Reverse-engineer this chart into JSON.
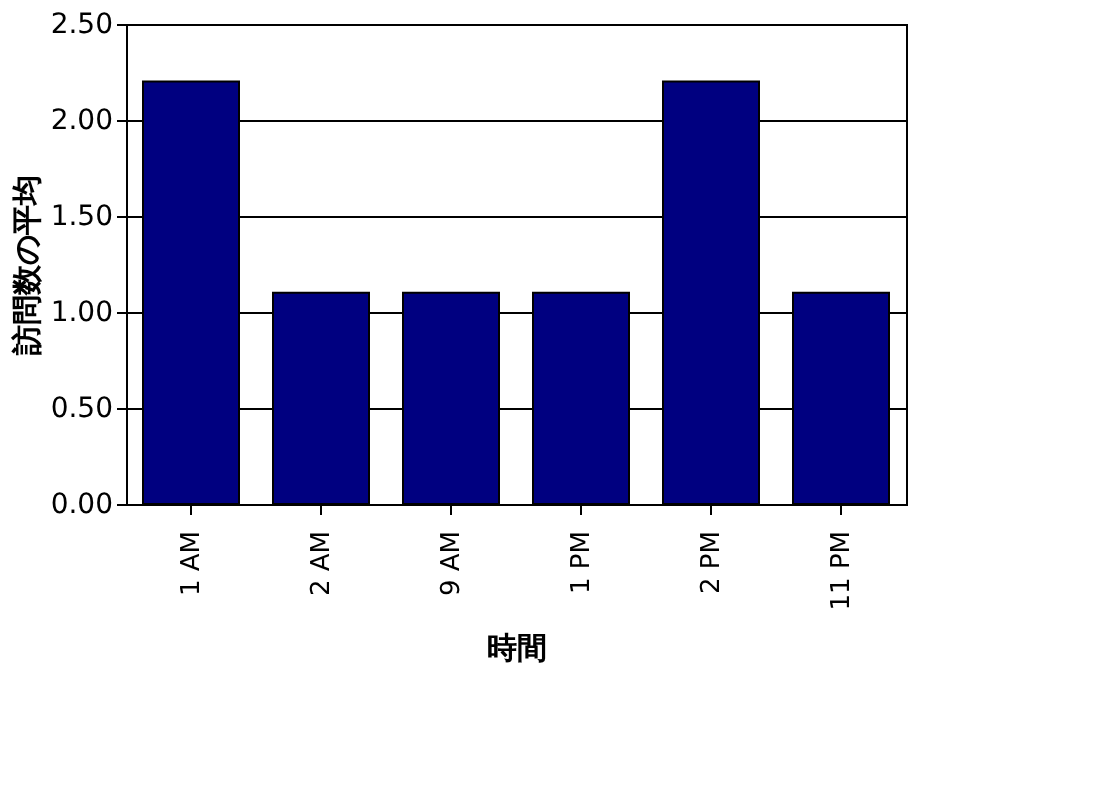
{
  "chart_data": {
    "type": "bar",
    "categories": [
      "1 AM",
      "2 AM",
      "9 AM",
      "1 PM",
      "2 PM",
      "11 PM"
    ],
    "values": [
      2.2,
      1.1,
      1.1,
      1.1,
      2.2,
      1.1
    ],
    "color": "#000080",
    "xlabel": "時間",
    "ylabel": "訪問数の平均",
    "ylim": [
      0,
      2.5
    ],
    "yticks": [
      {
        "value": 0,
        "label": "0.00"
      },
      {
        "value": 0.5,
        "label": "0.50"
      },
      {
        "value": 1,
        "label": "1.00"
      },
      {
        "value": 1.5,
        "label": "1.50"
      },
      {
        "value": 2,
        "label": "2.00"
      },
      {
        "value": 2.5,
        "label": "2.50"
      }
    ],
    "grid": "y"
  }
}
